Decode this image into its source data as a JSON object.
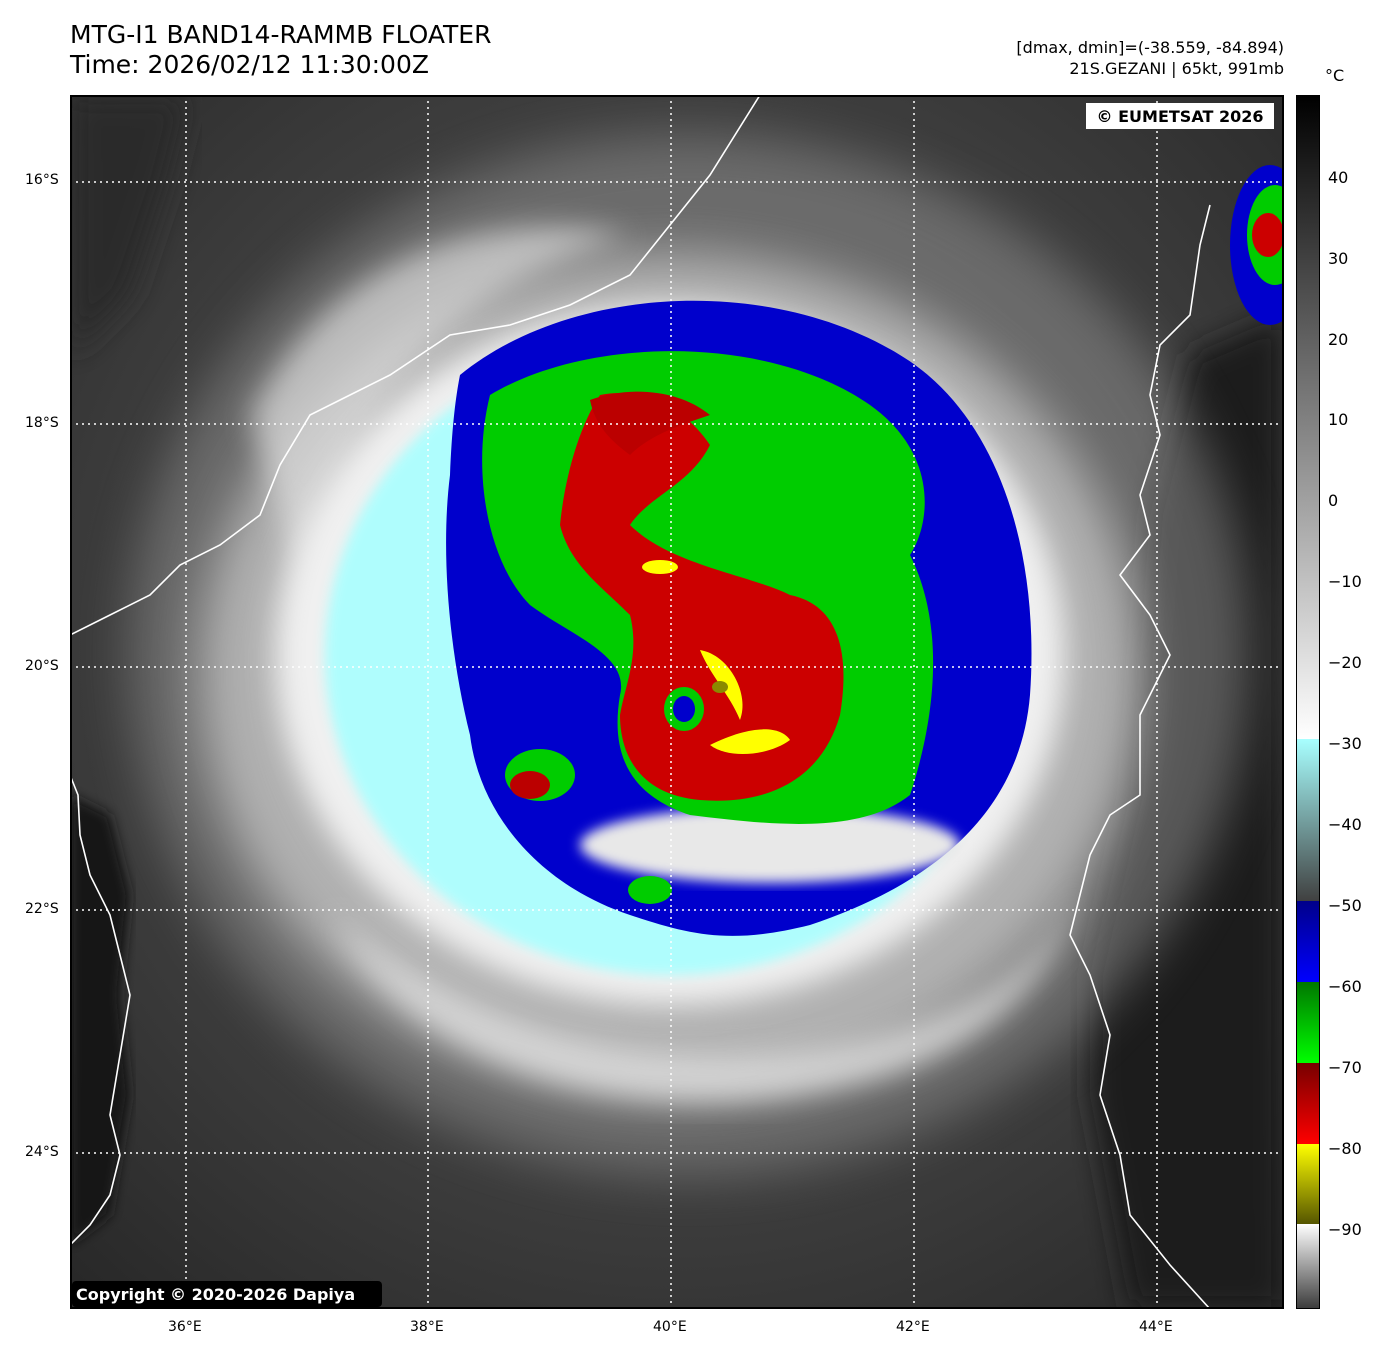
{
  "header": {
    "title_line1": "MTG-I1 BAND14-RAMMB FLOATER",
    "title_line2": "Time: 2026/02/12 11:30:00Z",
    "range_text": "[dmax, dmin]=(-38.559, -84.894)",
    "storm_text": "21S.GEZANI | 65kt, 991mb"
  },
  "map": {
    "watermark": "© EUMETSAT 2026",
    "copyright": "Copyright © 2020-2026 Dapiya",
    "lat_labels": [
      "16°S",
      "18°S",
      "20°S",
      "22°S",
      "24°S"
    ],
    "lon_labels": [
      "36°E",
      "38°E",
      "40°E",
      "42°E",
      "44°E"
    ]
  },
  "colorbar": {
    "unit": "°C",
    "ticks": [
      "40",
      "30",
      "20",
      "10",
      "0",
      "−10",
      "−20",
      "−30",
      "−40",
      "−50",
      "−60",
      "−70",
      "−80",
      "−90"
    ],
    "colors": {
      "black": "#000000",
      "white": "#ffffff",
      "cyan": "#a8ffff",
      "blue": "#0000cc",
      "green": "#00cc00",
      "red": "#cc0000",
      "yellow": "#ffff00",
      "olive": "#6a6a00"
    }
  }
}
